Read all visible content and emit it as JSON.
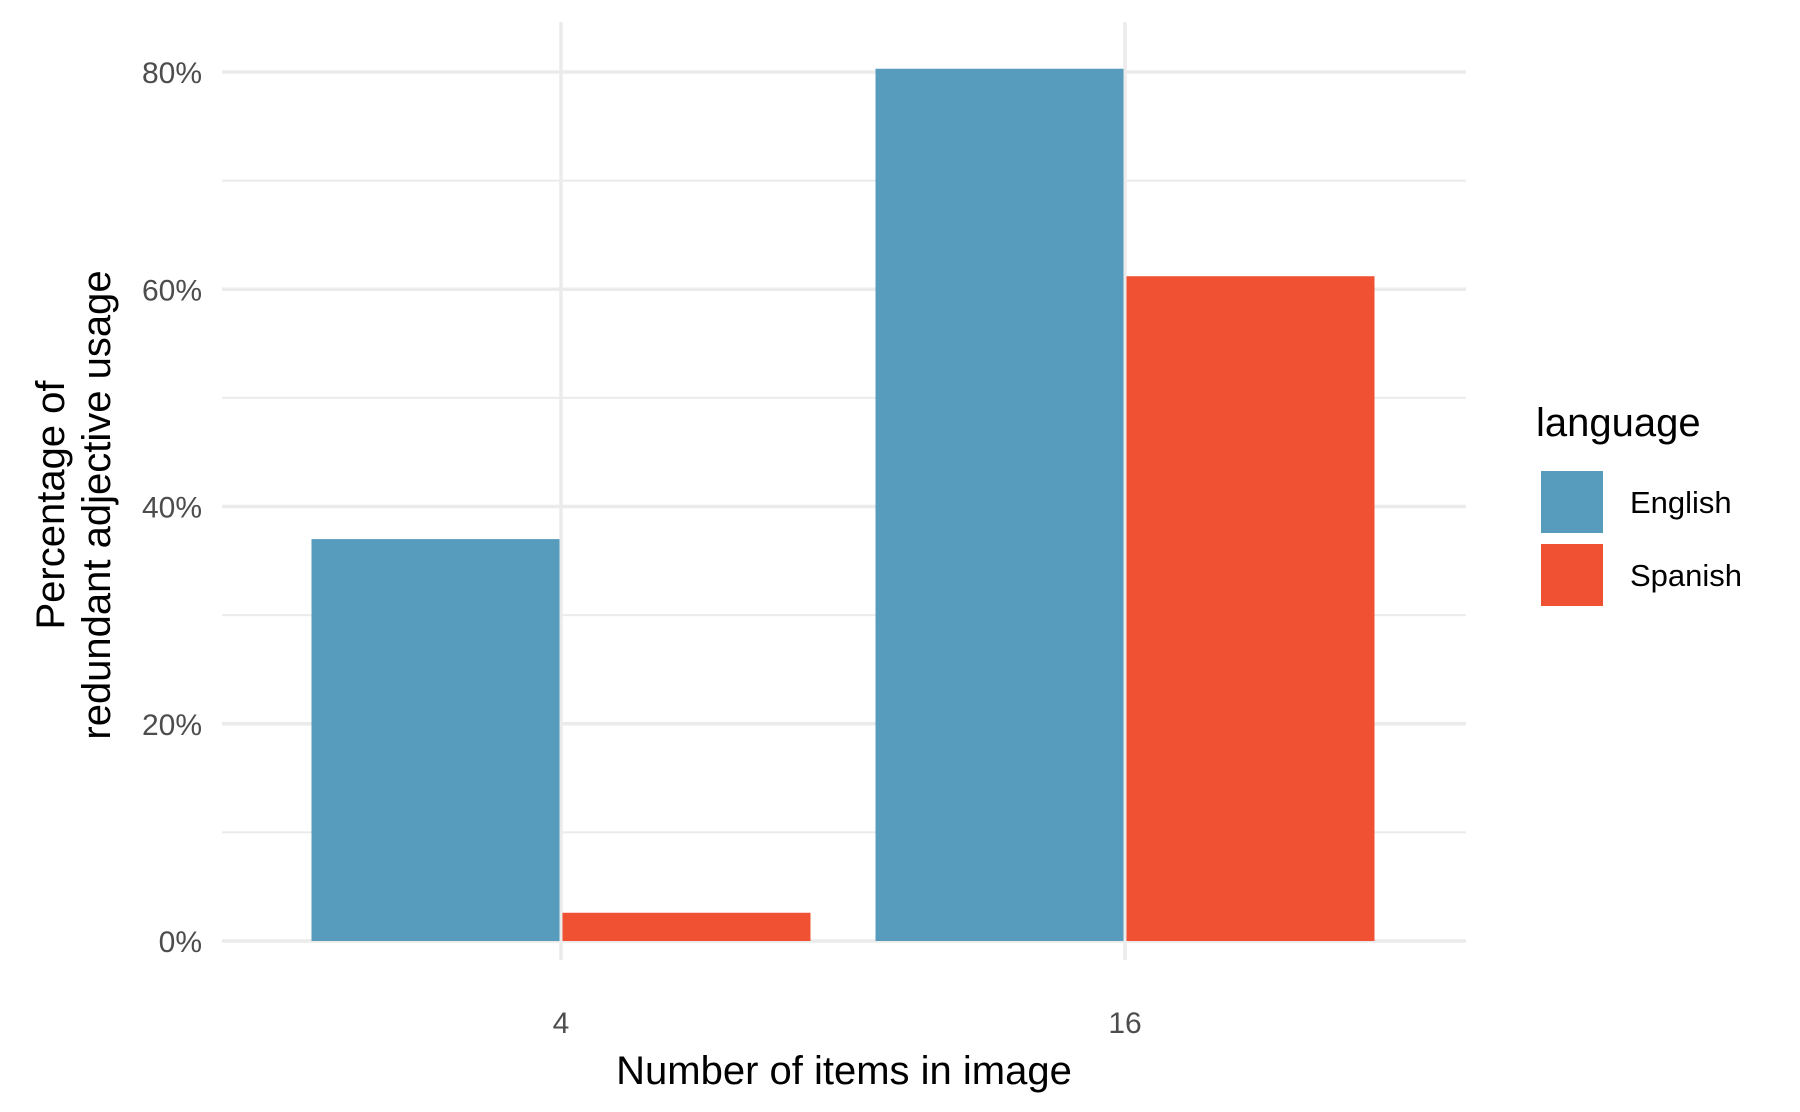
{
  "chart_data": {
    "type": "bar",
    "categories": [
      "4",
      "16"
    ],
    "series": [
      {
        "name": "English",
        "color": "#579bbd",
        "values": [
          37,
          80.3
        ]
      },
      {
        "name": "Spanish",
        "color": "#f05133",
        "values": [
          2.6,
          61.2
        ]
      }
    ],
    "ylim": [
      0,
      80
    ],
    "yticks": [
      0,
      20,
      40,
      60,
      80
    ],
    "ytick_labels": [
      "0%",
      "20%",
      "40%",
      "60%",
      "80%"
    ],
    "xlabel": "Number of items in image",
    "ylabel_lines": [
      "Percentage of",
      "redundant adjective usage"
    ],
    "legend": {
      "title": "language",
      "position": "right"
    },
    "grid": true
  }
}
